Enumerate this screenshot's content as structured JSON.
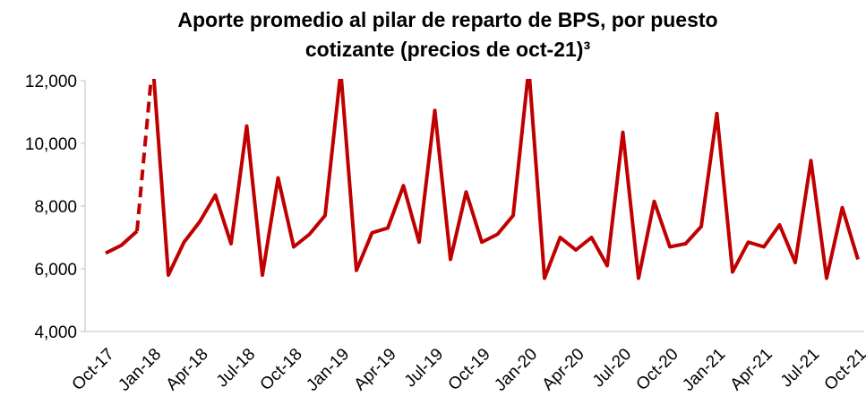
{
  "chart_data": {
    "type": "line",
    "title": [
      "Aporte promedio al pilar de reparto de BPS, por puesto",
      "cotizante (precios de oct-21)³"
    ],
    "categories": [
      "Oct-17",
      null,
      null,
      "Jan-18",
      null,
      null,
      "Apr-18",
      null,
      null,
      "Jul-18",
      null,
      null,
      "Oct-18",
      null,
      null,
      "Jan-19",
      null,
      null,
      "Apr-19",
      null,
      null,
      "Jul-19",
      null,
      null,
      "Oct-19",
      null,
      null,
      "Jan-20",
      null,
      null,
      "Apr-20",
      null,
      null,
      "Jul-20",
      null,
      null,
      "Oct-20",
      null,
      null,
      "Jan-21",
      null,
      null,
      "Apr-21",
      null,
      null,
      "Jul-21",
      null,
      null,
      "Oct-21"
    ],
    "series": [
      {
        "color": "#c00000",
        "dashed_segments": [
          [
            2,
            3
          ]
        ],
        "values": [
          6500,
          6750,
          7200,
          12600,
          5800,
          6850,
          7500,
          8350,
          6800,
          10550,
          5800,
          8900,
          6700,
          7100,
          7700,
          12300,
          5950,
          7150,
          7300,
          8650,
          6850,
          11050,
          6300,
          8450,
          6850,
          7100,
          7700,
          12400,
          5700,
          7000,
          6600,
          7000,
          6100,
          10350,
          5700,
          8150,
          6700,
          6800,
          7350,
          10950,
          5900,
          6850,
          6700,
          7400,
          6200,
          9450,
          5700,
          7950,
          6300
        ]
      }
    ],
    "ylim": [
      4000,
      12000
    ],
    "yticks": [
      {
        "value": 4000,
        "label": "4,000"
      },
      {
        "value": 6000,
        "label": "6,000"
      },
      {
        "value": 8000,
        "label": "8,000"
      },
      {
        "value": 10000,
        "label": "10,000"
      },
      {
        "value": 12000,
        "label": "12,000"
      }
    ],
    "grid": false
  }
}
